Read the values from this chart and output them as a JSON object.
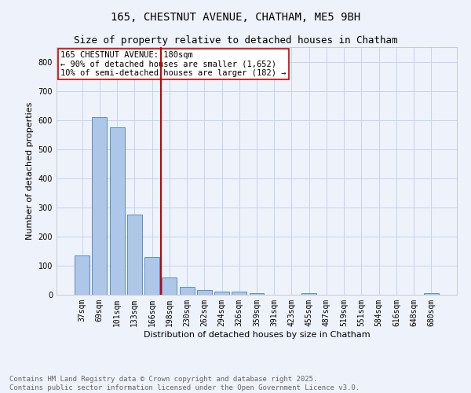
{
  "title": "165, CHESTNUT AVENUE, CHATHAM, ME5 9BH",
  "subtitle": "Size of property relative to detached houses in Chatham",
  "xlabel": "Distribution of detached houses by size in Chatham",
  "ylabel": "Number of detached properties",
  "categories": [
    "37sqm",
    "69sqm",
    "101sqm",
    "133sqm",
    "166sqm",
    "198sqm",
    "230sqm",
    "262sqm",
    "294sqm",
    "326sqm",
    "359sqm",
    "391sqm",
    "423sqm",
    "455sqm",
    "487sqm",
    "519sqm",
    "551sqm",
    "584sqm",
    "616sqm",
    "648sqm",
    "680sqm"
  ],
  "values": [
    135,
    610,
    575,
    275,
    130,
    60,
    28,
    17,
    10,
    12,
    5,
    1,
    0,
    5,
    0,
    0,
    0,
    0,
    0,
    0,
    5
  ],
  "bar_color": "#aec6e8",
  "bar_edge_color": "#5a8fc4",
  "vline_x": 4.5,
  "vline_color": "#cc0000",
  "annotation_text": "165 CHESTNUT AVENUE: 180sqm\n← 90% of detached houses are smaller (1,652)\n10% of semi-detached houses are larger (182) →",
  "annotation_box_color": "#ffffff",
  "annotation_box_edge_color": "#cc0000",
  "ylim": [
    0,
    850
  ],
  "yticks": [
    0,
    100,
    200,
    300,
    400,
    500,
    600,
    700,
    800
  ],
  "footer_line1": "Contains HM Land Registry data © Crown copyright and database right 2025.",
  "footer_line2": "Contains public sector information licensed under the Open Government Licence v3.0.",
  "bg_color": "#eef2fb",
  "grid_color": "#c8d4ea",
  "title_fontsize": 10,
  "subtitle_fontsize": 9,
  "axis_label_fontsize": 8,
  "tick_fontsize": 7,
  "annotation_fontsize": 7.5,
  "footer_fontsize": 6.5
}
